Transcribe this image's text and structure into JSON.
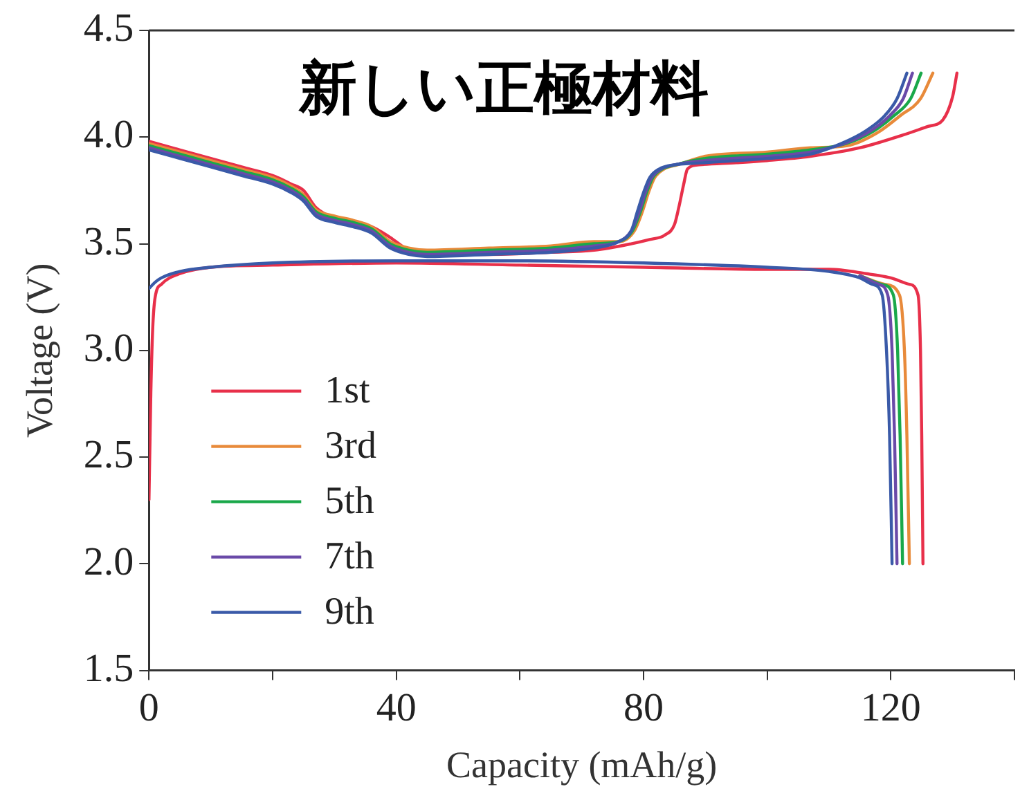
{
  "chart_data": {
    "type": "line",
    "title": "新しい正極材料",
    "xlabel": "Capacity (mAh/g)",
    "ylabel": "Voltage (V)",
    "xlim": [
      0,
      140
    ],
    "xticks": [
      0,
      {
        "value": 20,
        "label": null
      },
      40,
      {
        "value": 60,
        "label": null
      },
      80,
      {
        "value": 100,
        "label": null
      },
      120,
      {
        "value": 140,
        "label": null
      }
    ],
    "ylim": [
      1.5,
      4.5
    ],
    "yticks": [
      1.5,
      {
        "value": 2,
        "label": "2.0"
      },
      2.5,
      {
        "value": 3,
        "label": "3.0"
      },
      3.5,
      {
        "value": 4,
        "label": "4.0"
      },
      4.5
    ],
    "grid": false,
    "legend": "bottom left",
    "marker": "none",
    "line_style": "solid",
    "series": [
      {
        "name": "1st",
        "color": "#e8304a",
        "x": [
          0,
          5,
          10,
          15,
          20,
          23,
          25,
          27,
          30,
          33,
          36,
          39,
          42,
          45,
          55,
          65,
          72,
          78,
          81,
          83.4,
          85,
          85.7,
          86.5,
          87.1,
          89,
          95,
          100,
          107,
          115,
          122,
          126,
          128.4,
          130,
          130.7
        ],
        "values": [
          3.98,
          3.94,
          3.9,
          3.86,
          3.82,
          3.78,
          3.75,
          3.67,
          3.62,
          3.6,
          3.58,
          3.53,
          3.47,
          3.45,
          3.45,
          3.46,
          3.47,
          3.5,
          3.52,
          3.54,
          3.59,
          3.67,
          3.78,
          3.85,
          3.87,
          3.88,
          3.89,
          3.91,
          3.95,
          4.01,
          4.05,
          4.08,
          4.19,
          4.3
        ]
      },
      {
        "name": "3rd",
        "color": "#e88a3a",
        "x": [
          0,
          5,
          10,
          15,
          20,
          23,
          25,
          27,
          30,
          33,
          36,
          39,
          42,
          45,
          55,
          65,
          72,
          76,
          78.5,
          79.8,
          80.8,
          81.8,
          83.3,
          85.5,
          90,
          100,
          107,
          113,
          117.8,
          121.5,
          124.8,
          126.8
        ],
        "values": [
          3.97,
          3.93,
          3.89,
          3.85,
          3.81,
          3.77,
          3.73,
          3.66,
          3.63,
          3.61,
          3.58,
          3.51,
          3.48,
          3.47,
          3.48,
          3.49,
          3.51,
          3.51,
          3.56,
          3.65,
          3.74,
          3.81,
          3.85,
          3.87,
          3.91,
          3.93,
          3.95,
          3.96,
          4.02,
          4.1,
          4.18,
          4.3
        ]
      },
      {
        "name": "5th",
        "color": "#1aa84a",
        "x": [
          0,
          5,
          10,
          15,
          20,
          23,
          25,
          27,
          30,
          33,
          36,
          39,
          42,
          45,
          55,
          65,
          72,
          76,
          78.2,
          79.5,
          80.5,
          81.5,
          83,
          85.2,
          90,
          100,
          107,
          112.8,
          117.3,
          120.5,
          123.2,
          124.9
        ],
        "values": [
          3.96,
          3.92,
          3.88,
          3.84,
          3.8,
          3.76,
          3.72,
          3.65,
          3.62,
          3.6,
          3.57,
          3.5,
          3.47,
          3.46,
          3.47,
          3.48,
          3.5,
          3.51,
          3.56,
          3.65,
          3.74,
          3.81,
          3.85,
          3.87,
          3.9,
          3.92,
          3.94,
          3.97,
          4.03,
          4.1,
          4.18,
          4.3
        ]
      },
      {
        "name": "7th",
        "color": "#6a4aa8",
        "x": [
          0,
          5,
          10,
          15,
          20,
          23,
          25,
          27,
          30,
          33,
          36,
          39,
          42,
          45,
          55,
          65,
          72,
          76,
          78,
          79.3,
          80.3,
          81.3,
          82.8,
          85,
          90,
          100,
          107,
          112.5,
          116.8,
          119.8,
          122,
          123.5
        ],
        "values": [
          3.95,
          3.91,
          3.87,
          3.83,
          3.79,
          3.75,
          3.71,
          3.64,
          3.61,
          3.59,
          3.56,
          3.49,
          3.46,
          3.45,
          3.46,
          3.47,
          3.49,
          3.51,
          3.56,
          3.65,
          3.74,
          3.81,
          3.85,
          3.87,
          3.89,
          3.91,
          3.93,
          3.97,
          4.03,
          4.1,
          4.18,
          4.3
        ]
      },
      {
        "name": "9th",
        "color": "#3a5aa8",
        "x": [
          0,
          5,
          10,
          15,
          20,
          23,
          25,
          27,
          30,
          33,
          36,
          39,
          42,
          45,
          55,
          65,
          72,
          76,
          78,
          79,
          80,
          81,
          82.5,
          85,
          90,
          100,
          107,
          112,
          116,
          119,
          121,
          122.6
        ],
        "values": [
          3.94,
          3.9,
          3.86,
          3.82,
          3.78,
          3.74,
          3.7,
          3.63,
          3.6,
          3.58,
          3.55,
          3.48,
          3.45,
          3.44,
          3.45,
          3.46,
          3.48,
          3.51,
          3.56,
          3.65,
          3.74,
          3.81,
          3.85,
          3.87,
          3.88,
          3.9,
          3.92,
          3.97,
          4.03,
          4.1,
          4.18,
          4.3
        ]
      },
      {
        "color": "#e8304a",
        "x": [
          0,
          0.3,
          0.6,
          1,
          2,
          5,
          10,
          20,
          40,
          60,
          80,
          100,
          110,
          116,
          120,
          123,
          124.4,
          124.8,
          125,
          125.2
        ],
        "values": [
          2.3,
          2.8,
          3.1,
          3.25,
          3.31,
          3.36,
          3.39,
          3.4,
          3.41,
          3.4,
          3.39,
          3.38,
          3.38,
          3.36,
          3.34,
          3.31,
          3.26,
          3,
          2.6,
          2
        ]
      },
      {
        "color": "#e88a3a",
        "x": [
          115,
          119,
          121.4,
          122.2,
          122.6,
          123
        ],
        "values": [
          3.35,
          3.31,
          3.26,
          3,
          2.6,
          2
        ]
      },
      {
        "color": "#1aa84a",
        "x": [
          115,
          118.5,
          120.4,
          121.1,
          121.5,
          121.9
        ],
        "values": [
          3.35,
          3.31,
          3.26,
          3,
          2.6,
          2
        ]
      },
      {
        "color": "#6a4aa8",
        "x": [
          115,
          118,
          119.5,
          120.2,
          120.6,
          121
        ],
        "values": [
          3.35,
          3.31,
          3.26,
          3,
          2.6,
          2
        ]
      },
      {
        "color": "#3a5aa8",
        "x": [
          0,
          1,
          2,
          5,
          10,
          20,
          40,
          60,
          80,
          100,
          110,
          115,
          117,
          118.6,
          119.3,
          119.8,
          120.2
        ],
        "values": [
          3.29,
          3.32,
          3.34,
          3.37,
          3.39,
          3.41,
          3.42,
          3.42,
          3.41,
          3.39,
          3.37,
          3.34,
          3.31,
          3.26,
          3,
          2.6,
          2
        ]
      }
    ]
  }
}
